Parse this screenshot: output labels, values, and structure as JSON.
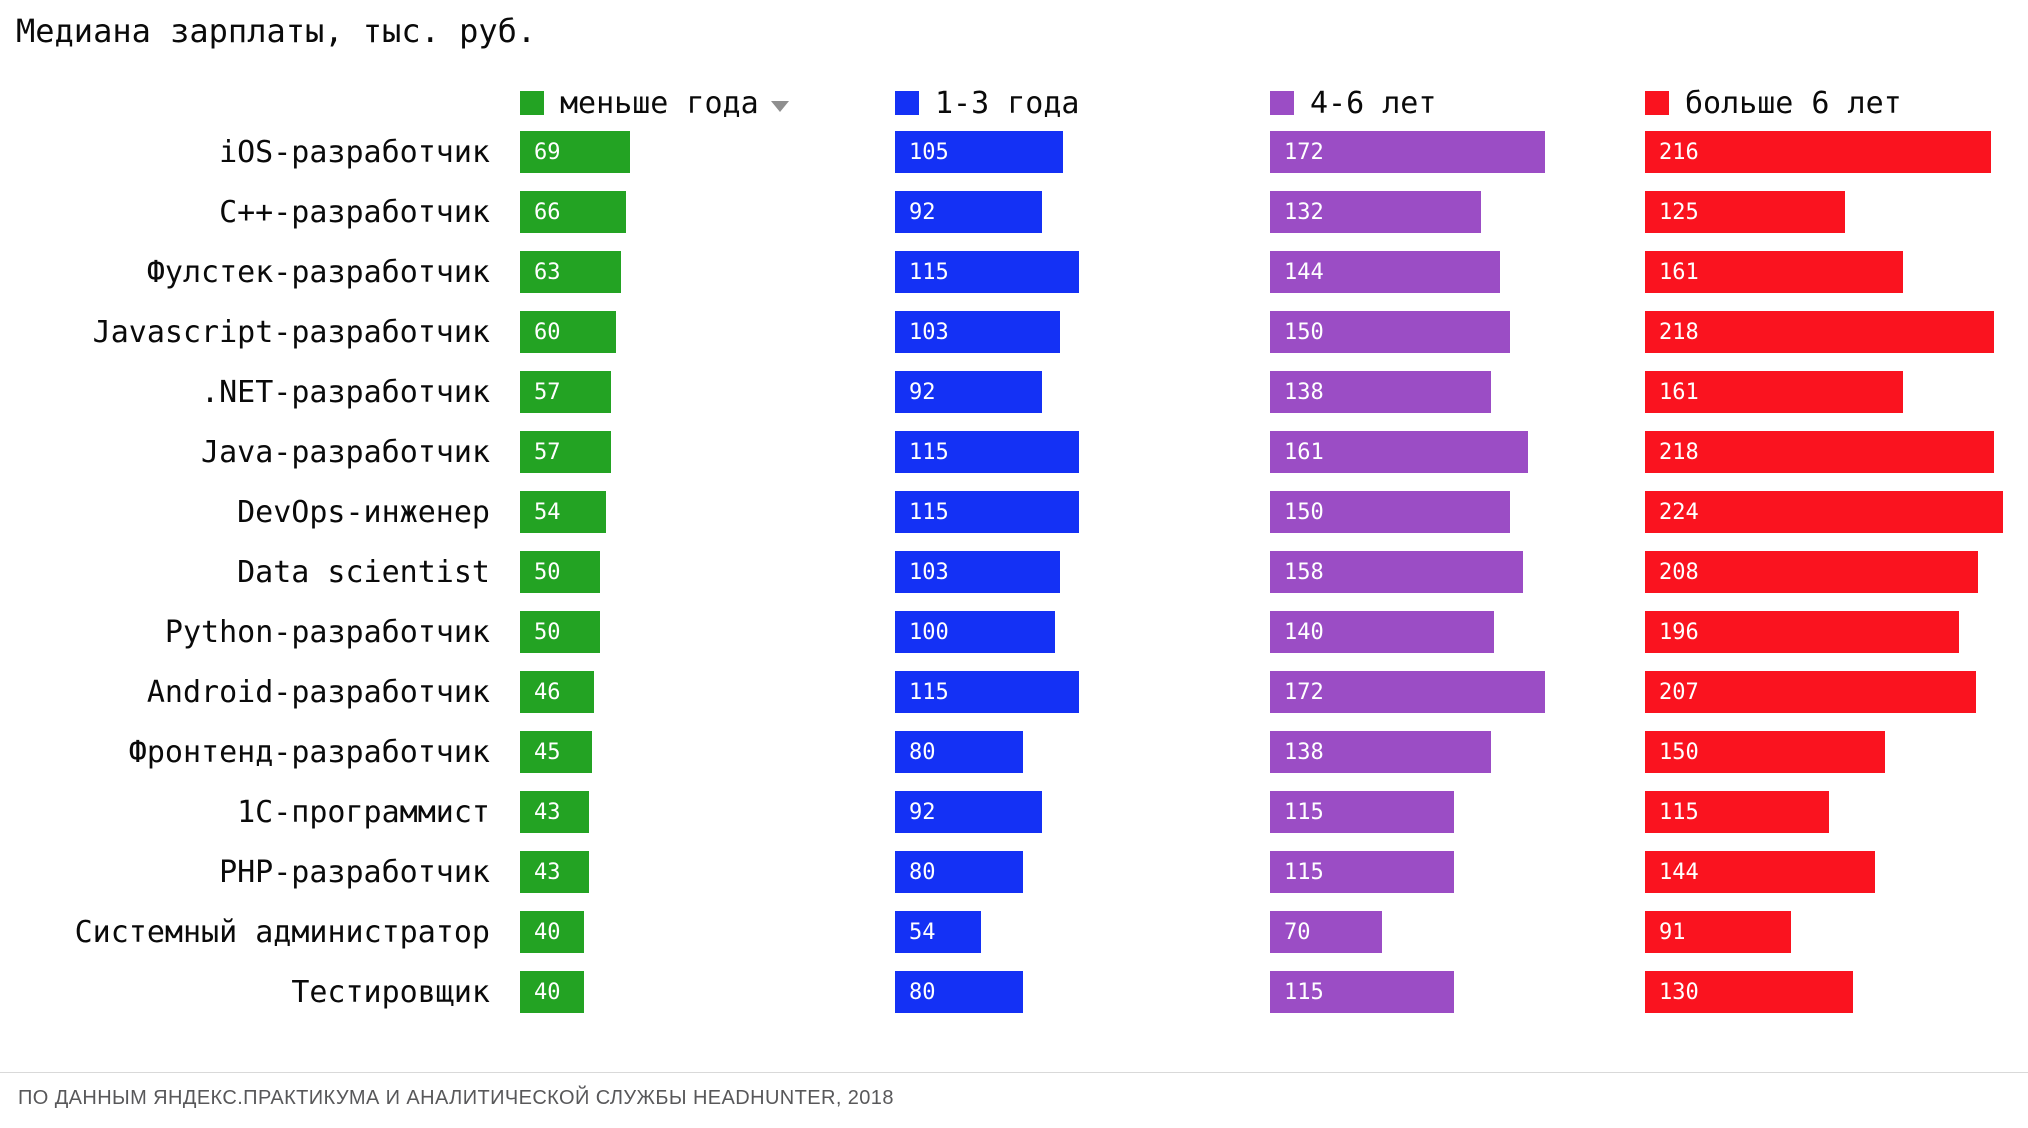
{
  "title": "Медиана зарплаты, тыс. руб.",
  "icons": {
    "legend_dropdown": "caret-down-icon"
  },
  "footer": {
    "source": "ПО ДАННЫМ ЯНДЕКС.ПРАКТИКУМА И АНАЛИТИЧЕСКОЙ СЛУЖБЫ HEADHUNTER, 2018"
  },
  "chart_data": {
    "type": "bar",
    "orientation": "horizontal",
    "title": "Медиана зарплаты, тыс. руб.",
    "grid": false,
    "axis_visible": false,
    "value_labels": "inside-left",
    "legend_position": "top-as-column-headers",
    "xlim": [
      0,
      234
    ],
    "categories": [
      "iOS-разработчик",
      "C++-разработчик",
      "Фулстек-разработчик",
      "Javascript-разработчик",
      ".NET-разработчик",
      "Java-разработчик",
      "DevOps-инженер",
      "Data scientist",
      "Python-разработчик",
      "Android-разработчик",
      "Фронтенд-разработчик",
      "1C-программист",
      "PHP-разработчик",
      "Системный администратор",
      "Тестировщик"
    ],
    "series": [
      {
        "name": "меньше года",
        "color": "#23a323",
        "values": [
          69,
          66,
          63,
          60,
          57,
          57,
          54,
          50,
          50,
          46,
          45,
          43,
          43,
          40,
          40
        ]
      },
      {
        "name": "1-3 года",
        "color": "#1431f5",
        "values": [
          105,
          92,
          115,
          103,
          92,
          115,
          115,
          103,
          100,
          115,
          80,
          92,
          80,
          54,
          80
        ]
      },
      {
        "name": "4-6 лет",
        "color": "#9b4dc5",
        "values": [
          172,
          132,
          144,
          150,
          138,
          161,
          150,
          158,
          140,
          172,
          138,
          115,
          115,
          70,
          115
        ]
      },
      {
        "name": "больше 6 лет",
        "color": "#fa131f",
        "values": [
          216,
          125,
          161,
          218,
          161,
          218,
          224,
          208,
          196,
          207,
          150,
          115,
          144,
          91,
          130
        ]
      }
    ],
    "source": "ПО ДАННЫМ ЯНДЕКС.ПРАКТИКУМА И АНАЛИТИЧЕСКОЙ СЛУЖБЫ HEADHUNTER, 2018"
  }
}
